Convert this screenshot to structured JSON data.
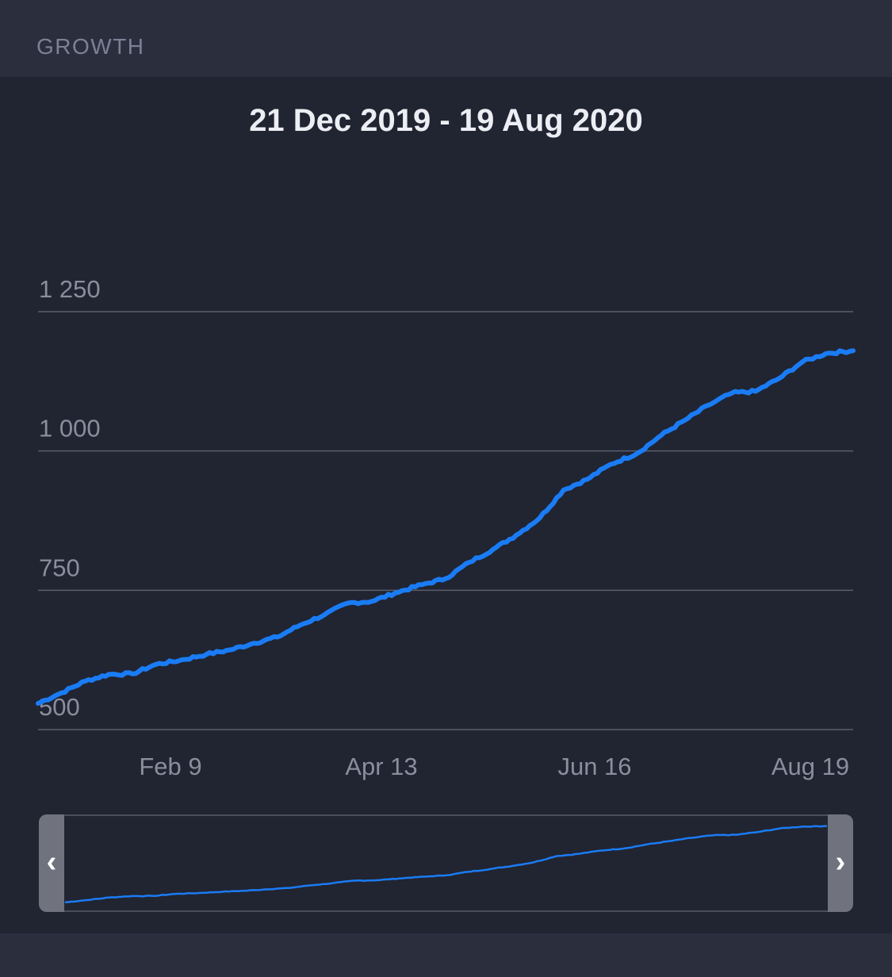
{
  "section": {
    "title": "GROWTH"
  },
  "chart_data": {
    "type": "line",
    "title": "21 Dec 2019 - 19 Aug 2020",
    "x_start": "2019-12-21",
    "x_end": "2020-08-19",
    "x_ticks": [
      {
        "date": "2020-02-09",
        "label": "Feb 9"
      },
      {
        "date": "2020-04-13",
        "label": "Apr 13"
      },
      {
        "date": "2020-06-16",
        "label": "Jun 16"
      },
      {
        "date": "2020-08-19",
        "label": "Aug 19"
      }
    ],
    "y_ticks": [
      {
        "value": 500,
        "label": "500"
      },
      {
        "value": 750,
        "label": "750"
      },
      {
        "value": 1000,
        "label": "1 000"
      },
      {
        "value": 1250,
        "label": "1 250"
      }
    ],
    "ylim": [
      500,
      1250
    ],
    "grid": true,
    "colors": {
      "line": "#1a7cf5",
      "grid": "#5a5e6e",
      "background": "#212431"
    },
    "series": [
      {
        "points": [
          [
            "2019-12-21",
            547
          ],
          [
            "2019-12-28",
            566
          ],
          [
            "2020-01-04",
            587
          ],
          [
            "2020-01-11",
            599
          ],
          [
            "2020-01-18",
            600
          ],
          [
            "2020-01-25",
            617
          ],
          [
            "2020-02-01",
            624
          ],
          [
            "2020-02-09",
            635
          ],
          [
            "2020-02-16",
            643
          ],
          [
            "2020-02-23",
            655
          ],
          [
            "2020-03-01",
            666
          ],
          [
            "2020-03-08",
            688
          ],
          [
            "2020-03-15",
            706
          ],
          [
            "2020-03-22",
            727
          ],
          [
            "2020-03-29",
            730
          ],
          [
            "2020-04-05",
            745
          ],
          [
            "2020-04-13",
            760
          ],
          [
            "2020-04-20",
            771
          ],
          [
            "2020-04-27",
            800
          ],
          [
            "2020-05-04",
            823
          ],
          [
            "2020-05-11",
            849
          ],
          [
            "2020-05-18",
            880
          ],
          [
            "2020-05-25",
            930
          ],
          [
            "2020-06-01",
            949
          ],
          [
            "2020-06-08",
            976
          ],
          [
            "2020-06-16",
            996
          ],
          [
            "2020-06-23",
            1028
          ],
          [
            "2020-06-30",
            1055
          ],
          [
            "2020-07-07",
            1082
          ],
          [
            "2020-07-14",
            1104
          ],
          [
            "2020-07-21",
            1107
          ],
          [
            "2020-07-28",
            1130
          ],
          [
            "2020-08-04",
            1160
          ],
          [
            "2020-08-11",
            1175
          ],
          [
            "2020-08-19",
            1180
          ]
        ]
      }
    ],
    "navigator": {
      "left_handle": "‹",
      "right_handle": "›"
    }
  }
}
